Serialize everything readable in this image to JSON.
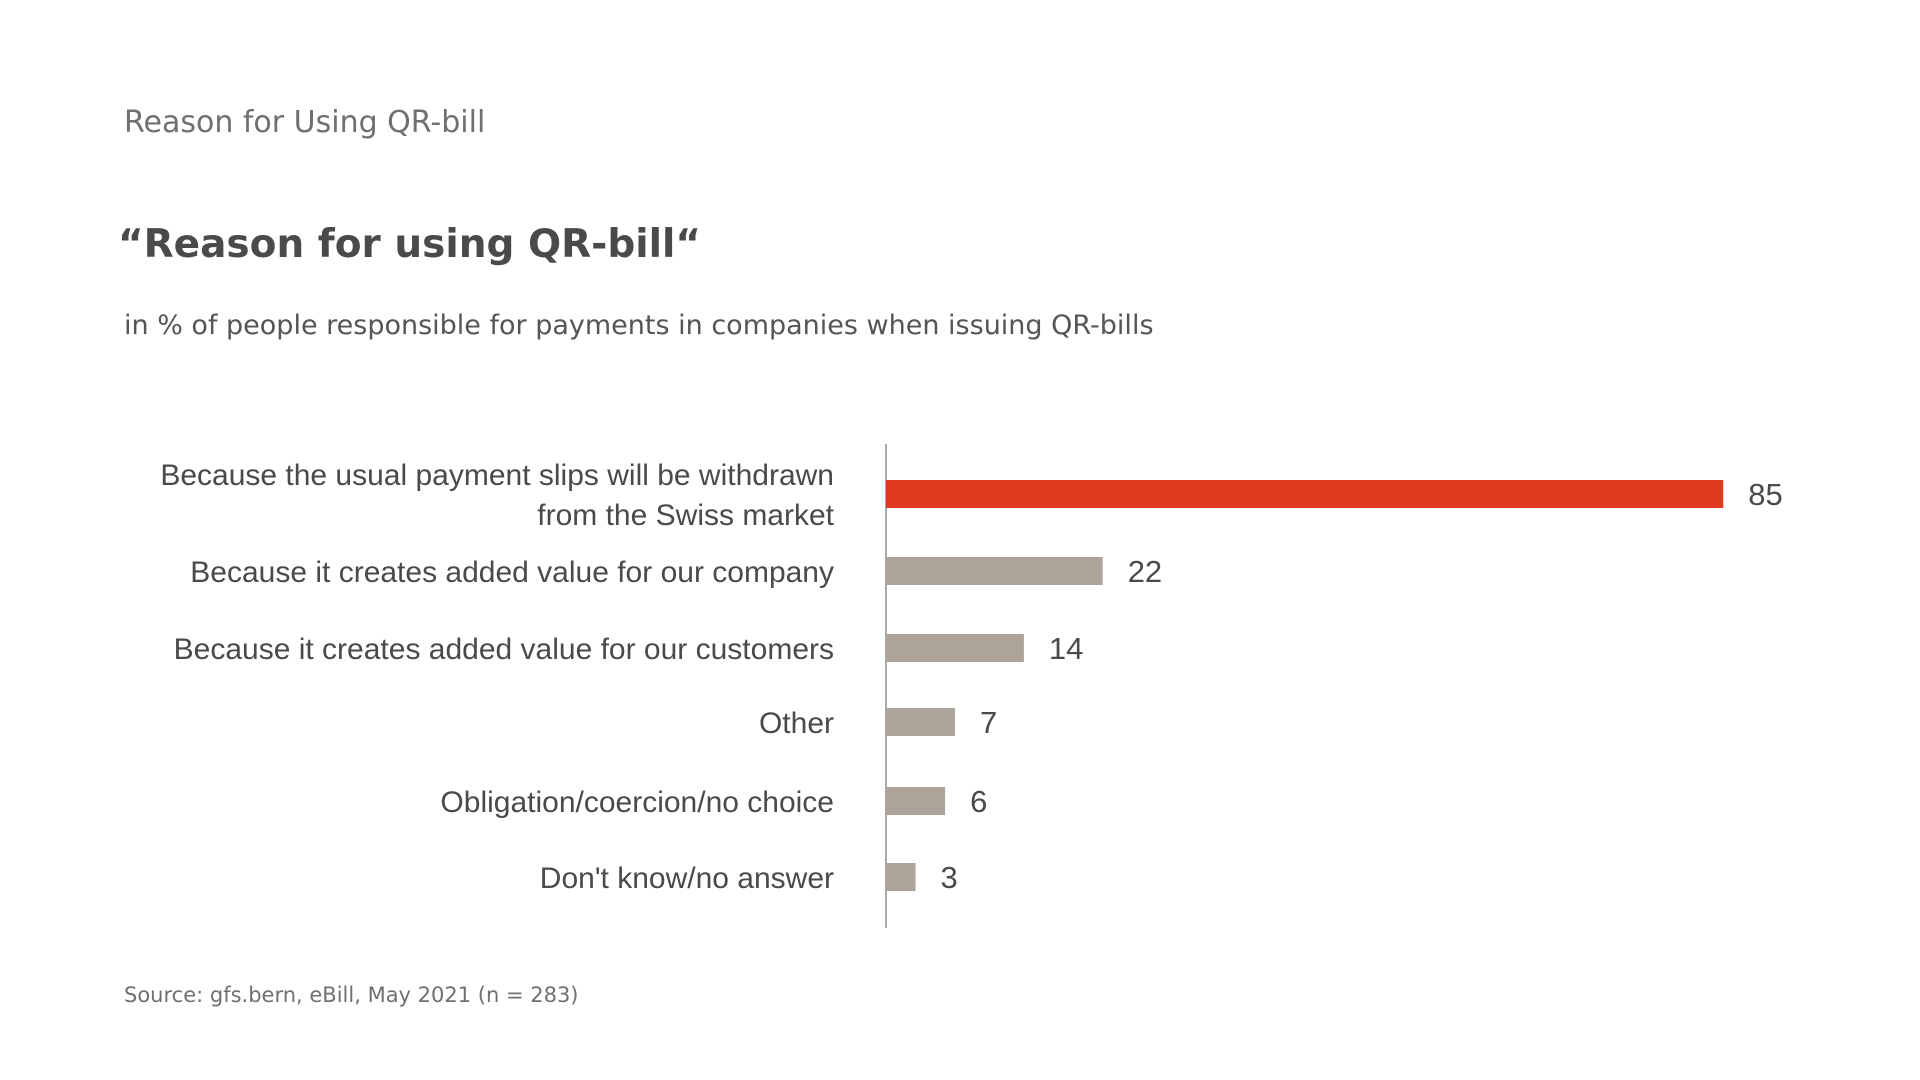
{
  "header": {
    "section_title": "Reason for Using QR-bill"
  },
  "chart_data": {
    "type": "bar",
    "orientation": "horizontal",
    "title": "“Reason for using QR-bill“",
    "subtitle": "in % of people responsible for payments in companies when issuing QR-bills",
    "categories": [
      "Because the usual payment slips will be withdrawn\nfrom the Swiss market",
      "Because it creates added value for our company",
      "Because it creates added value for our customers",
      "Other",
      "Obligation/coercion/no choice",
      "Don't know/no answer"
    ],
    "values": [
      85,
      22,
      14,
      7,
      6,
      3
    ],
    "data_labels": [
      "85",
      "22",
      "14",
      "7",
      "6",
      "3"
    ],
    "colors": [
      "#e03a1e",
      "#ada398",
      "#ada398",
      "#ada398",
      "#ada398",
      "#ada398"
    ],
    "xlim": [
      0,
      100
    ],
    "grid": false,
    "legend": "none"
  },
  "footer": {
    "source": "Source: gfs.bern, eBill, May 2021 (n = 283)"
  }
}
